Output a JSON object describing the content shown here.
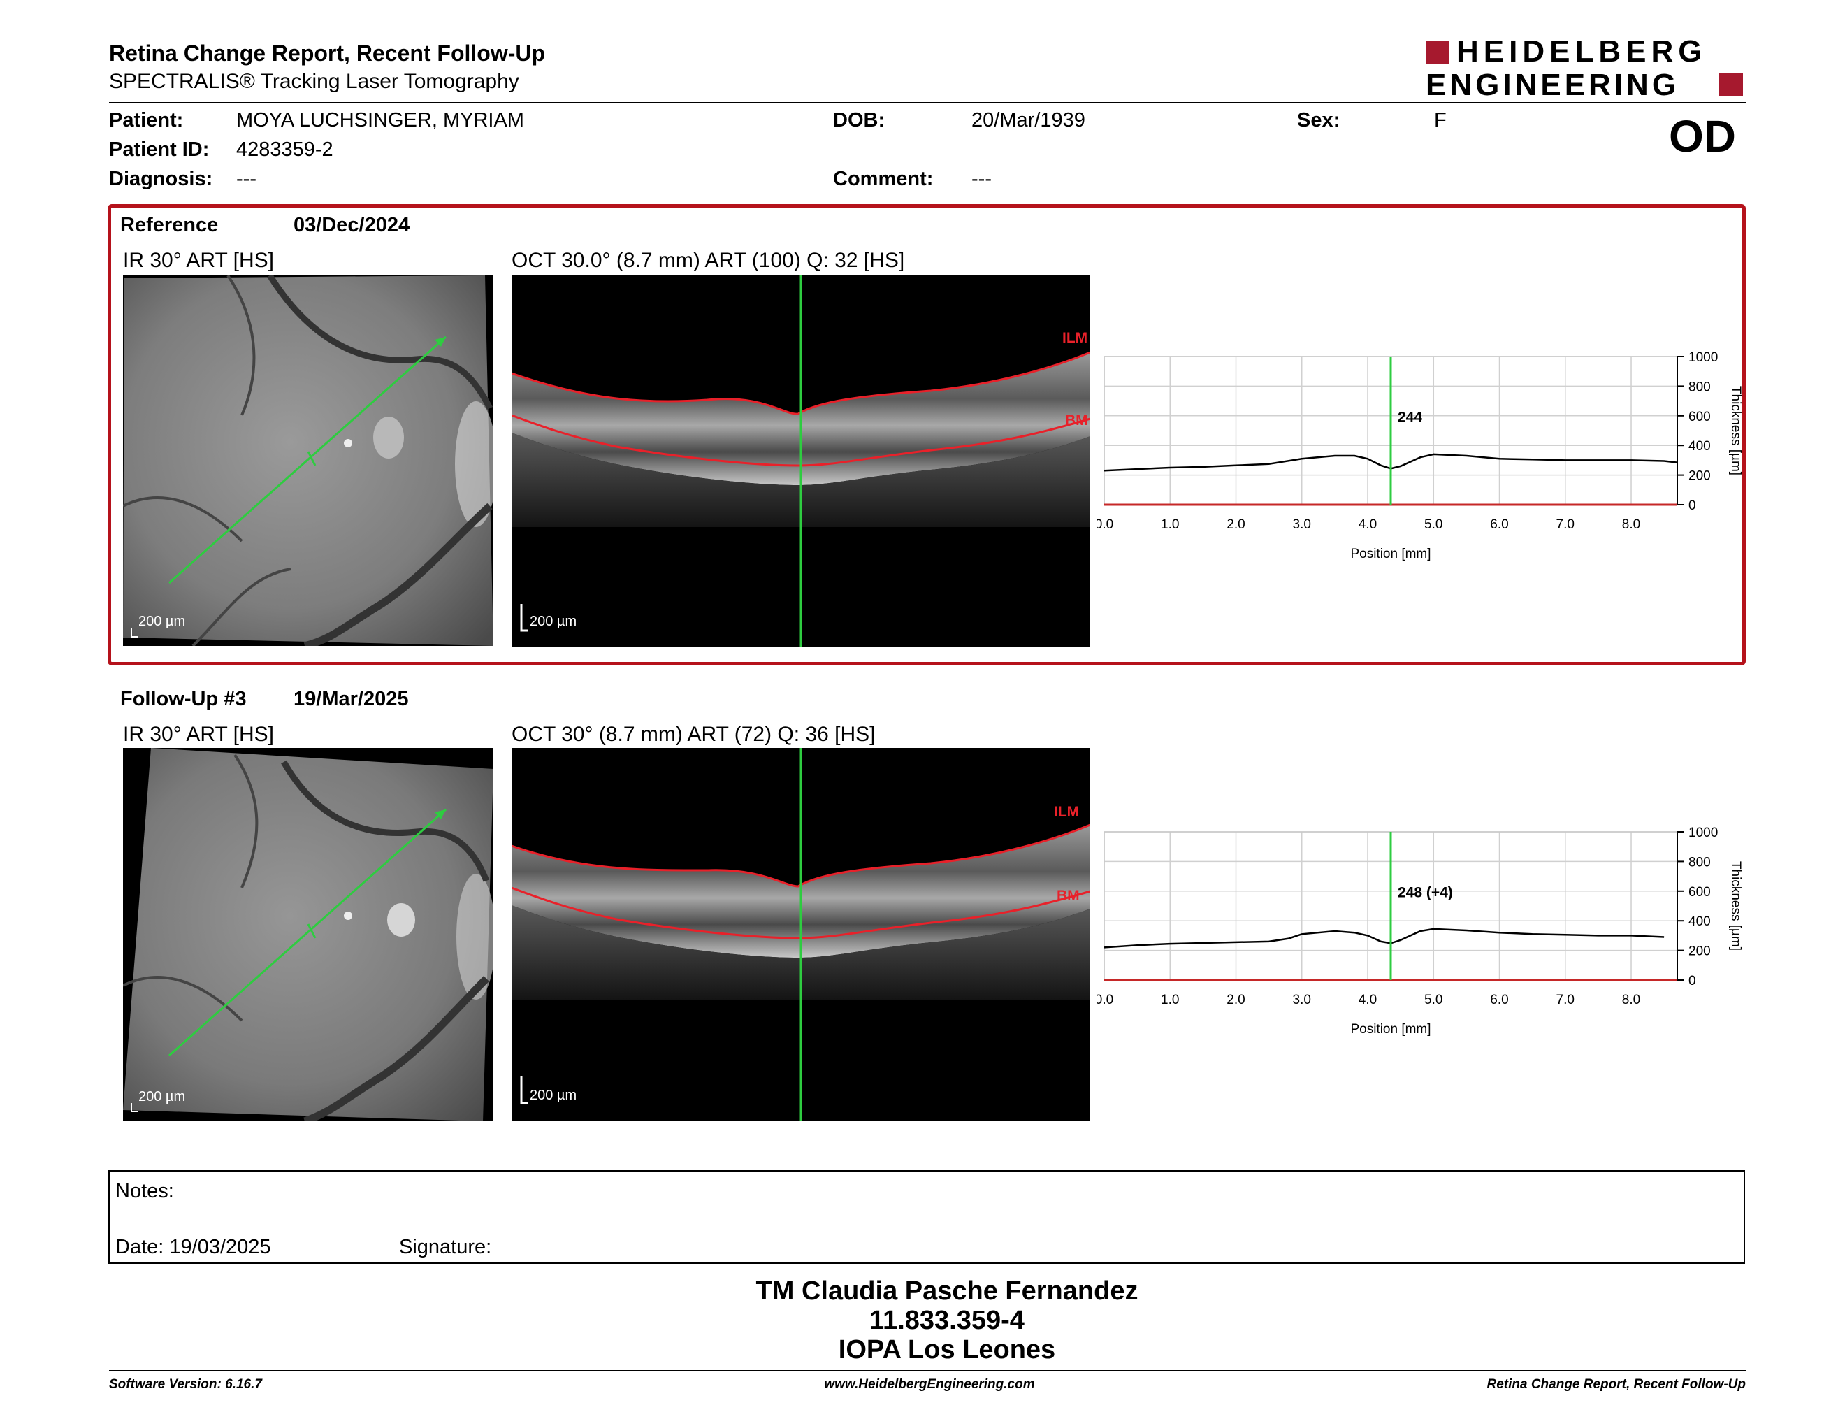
{
  "header": {
    "title": "Retina Change Report, Recent Follow-Up",
    "subtitle": "SPECTRALIS® Tracking Laser Tomography",
    "brand_line1": "HEIDELBERG",
    "brand_line2": "ENGINEERING",
    "brand_color": "#a6192e"
  },
  "patient": {
    "patient_label": "Patient:",
    "patient_name": "MOYA LUCHSINGER, MYRIAM",
    "dob_label": "DOB:",
    "dob": "20/Mar/1939",
    "sex_label": "Sex:",
    "sex": "F",
    "id_label": "Patient ID:",
    "patient_id": "4283359-2",
    "diagnosis_label": "Diagnosis:",
    "diagnosis": "---",
    "comment_label": "Comment:",
    "comment": "---",
    "eye": "OD"
  },
  "reference": {
    "label": "Reference",
    "date": "03/Dec/2024",
    "ir_title": "IR 30° ART [HS]",
    "oct_title": "OCT 30.0° (8.7 mm) ART (100) Q: 32 [HS]",
    "ir_scale": "200 µm",
    "oct_scale": "200 µm",
    "ilm": "ILM",
    "bm": "BM"
  },
  "followup": {
    "label": "Follow-Up #3",
    "date": "19/Mar/2025",
    "ir_title": "IR 30° ART [HS]",
    "oct_title": "OCT 30° (8.7 mm) ART (72) Q: 36 [HS]",
    "ir_scale": "200 µm",
    "oct_scale": "200 µm",
    "ilm": "ILM",
    "bm": "BM"
  },
  "chart_data": [
    {
      "type": "line",
      "ylabel": "Thickness [µm]",
      "xlabel": "Position [mm]",
      "xlim": [
        0,
        8.7
      ],
      "ylim": [
        0,
        1000
      ],
      "x_ticks": [
        "0.0",
        "1.0",
        "2.0",
        "3.0",
        "4.0",
        "5.0",
        "6.0",
        "7.0",
        "8.0"
      ],
      "y_ticks": [
        "0",
        "200",
        "400",
        "600",
        "800",
        "1000"
      ],
      "marker_x": 4.35,
      "marker_label": "244",
      "marker_color": "#2ecc40",
      "x": [
        0.0,
        0.5,
        1.0,
        1.5,
        2.0,
        2.5,
        3.0,
        3.5,
        3.8,
        4.0,
        4.2,
        4.35,
        4.5,
        4.8,
        5.0,
        5.5,
        6.0,
        6.5,
        7.0,
        7.5,
        8.0,
        8.5,
        8.7
      ],
      "y": [
        230,
        240,
        250,
        255,
        265,
        275,
        310,
        330,
        330,
        310,
        265,
        244,
        260,
        320,
        340,
        330,
        310,
        305,
        300,
        300,
        300,
        295,
        285
      ]
    },
    {
      "type": "line",
      "ylabel": "Thickness [µm]",
      "xlabel": "Position [mm]",
      "xlim": [
        0,
        8.7
      ],
      "ylim": [
        0,
        1000
      ],
      "x_ticks": [
        "0.0",
        "1.0",
        "2.0",
        "3.0",
        "4.0",
        "5.0",
        "6.0",
        "7.0",
        "8.0"
      ],
      "y_ticks": [
        "0",
        "200",
        "400",
        "600",
        "800",
        "1000"
      ],
      "marker_x": 4.35,
      "marker_label": "248 (+4)",
      "marker_color": "#2ecc40",
      "x": [
        0.0,
        0.5,
        1.0,
        1.5,
        2.0,
        2.5,
        2.8,
        3.0,
        3.5,
        3.8,
        4.0,
        4.2,
        4.35,
        4.5,
        4.8,
        5.0,
        5.5,
        6.0,
        6.5,
        7.0,
        7.5,
        8.0,
        8.5
      ],
      "y": [
        220,
        235,
        245,
        250,
        255,
        260,
        280,
        310,
        330,
        320,
        300,
        260,
        248,
        270,
        330,
        345,
        335,
        320,
        310,
        305,
        300,
        300,
        290
      ]
    }
  ],
  "notes": {
    "label": "Notes:",
    "date_label": "Date: 19/03/2025",
    "signature_label": "Signature:"
  },
  "stamp": {
    "line1": "TM Claudia Pasche Fernandez",
    "line2": "11.833.359-4",
    "line3": "IOPA Los Leones"
  },
  "footer": {
    "software": "Software Version: 6.16.7",
    "website": "www.HeidelbergEngineering.com",
    "report": "Retina Change Report, Recent Follow-Up"
  }
}
